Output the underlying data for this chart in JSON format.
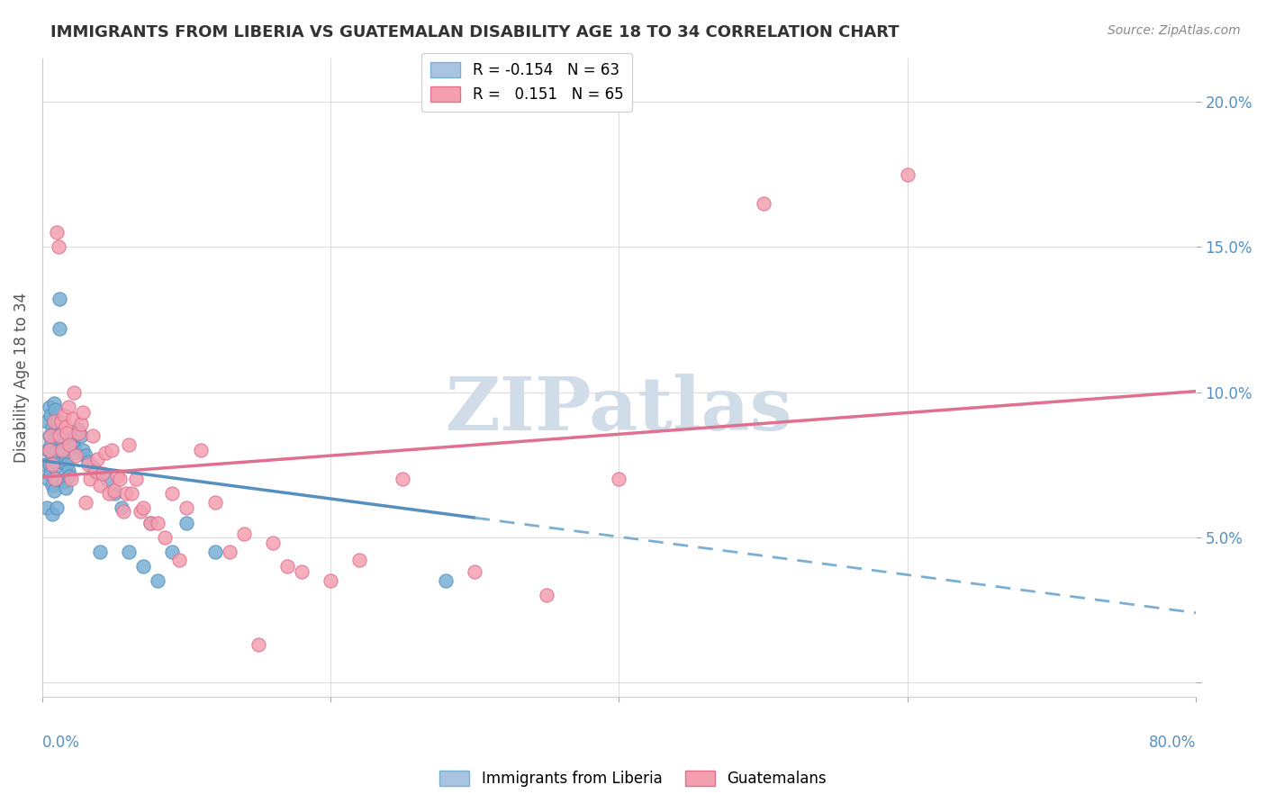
{
  "title": "IMMIGRANTS FROM LIBERIA VS GUATEMALAN DISABILITY AGE 18 TO 34 CORRELATION CHART",
  "source": "Source: ZipAtlas.com",
  "ylabel": "Disability Age 18 to 34",
  "yticks": [
    0.0,
    0.05,
    0.1,
    0.15,
    0.2
  ],
  "ytick_labels": [
    "",
    "5.0%",
    "10.0%",
    "15.0%",
    "20.0%"
  ],
  "xlim": [
    0.0,
    0.8
  ],
  "ylim": [
    -0.005,
    0.215
  ],
  "watermark": "ZIPatlas",
  "watermark_color": "#d0dce8",
  "series_blue": {
    "color": "#7aafd4",
    "edge_color": "#5590c0",
    "R": -0.154,
    "N": 63,
    "x": [
      0.002,
      0.003,
      0.003,
      0.004,
      0.004,
      0.005,
      0.005,
      0.005,
      0.006,
      0.006,
      0.006,
      0.007,
      0.007,
      0.007,
      0.007,
      0.008,
      0.008,
      0.008,
      0.008,
      0.009,
      0.009,
      0.009,
      0.01,
      0.01,
      0.01,
      0.01,
      0.011,
      0.011,
      0.012,
      0.012,
      0.013,
      0.013,
      0.014,
      0.015,
      0.015,
      0.016,
      0.016,
      0.017,
      0.018,
      0.019,
      0.02,
      0.021,
      0.022,
      0.023,
      0.025,
      0.027,
      0.028,
      0.03,
      0.032,
      0.035,
      0.038,
      0.04,
      0.045,
      0.05,
      0.055,
      0.06,
      0.07,
      0.075,
      0.08,
      0.09,
      0.1,
      0.12,
      0.28
    ],
    "y": [
      0.075,
      0.09,
      0.06,
      0.08,
      0.07,
      0.095,
      0.085,
      0.075,
      0.092,
      0.082,
      0.072,
      0.088,
      0.078,
      0.068,
      0.058,
      0.096,
      0.086,
      0.076,
      0.066,
      0.094,
      0.084,
      0.074,
      0.09,
      0.08,
      0.07,
      0.06,
      0.088,
      0.078,
      0.132,
      0.122,
      0.086,
      0.076,
      0.083,
      0.079,
      0.069,
      0.077,
      0.067,
      0.075,
      0.073,
      0.071,
      0.085,
      0.083,
      0.081,
      0.079,
      0.087,
      0.085,
      0.08,
      0.078,
      0.076,
      0.074,
      0.072,
      0.045,
      0.07,
      0.065,
      0.06,
      0.045,
      0.04,
      0.055,
      0.035,
      0.045,
      0.055,
      0.045,
      0.035
    ]
  },
  "series_pink": {
    "color": "#f4a0b0",
    "edge_color": "#e07090",
    "R": 0.151,
    "N": 65,
    "x": [
      0.005,
      0.006,
      0.007,
      0.008,
      0.009,
      0.01,
      0.011,
      0.012,
      0.013,
      0.014,
      0.015,
      0.016,
      0.017,
      0.018,
      0.019,
      0.02,
      0.021,
      0.022,
      0.023,
      0.025,
      0.027,
      0.028,
      0.03,
      0.032,
      0.033,
      0.035,
      0.037,
      0.038,
      0.04,
      0.042,
      0.044,
      0.046,
      0.048,
      0.05,
      0.052,
      0.054,
      0.056,
      0.058,
      0.06,
      0.062,
      0.065,
      0.068,
      0.07,
      0.075,
      0.08,
      0.085,
      0.09,
      0.095,
      0.1,
      0.11,
      0.12,
      0.13,
      0.14,
      0.15,
      0.16,
      0.17,
      0.18,
      0.2,
      0.22,
      0.25,
      0.3,
      0.35,
      0.4,
      0.5,
      0.6
    ],
    "y": [
      0.08,
      0.085,
      0.075,
      0.09,
      0.07,
      0.155,
      0.15,
      0.085,
      0.09,
      0.08,
      0.092,
      0.088,
      0.086,
      0.095,
      0.082,
      0.07,
      0.091,
      0.1,
      0.078,
      0.086,
      0.089,
      0.093,
      0.062,
      0.075,
      0.07,
      0.085,
      0.073,
      0.077,
      0.068,
      0.072,
      0.079,
      0.065,
      0.08,
      0.066,
      0.071,
      0.07,
      0.059,
      0.065,
      0.082,
      0.065,
      0.07,
      0.059,
      0.06,
      0.055,
      0.055,
      0.05,
      0.065,
      0.042,
      0.06,
      0.08,
      0.062,
      0.045,
      0.051,
      0.013,
      0.048,
      0.04,
      0.038,
      0.035,
      0.042,
      0.07,
      0.038,
      0.03,
      0.07,
      0.165,
      0.175
    ]
  },
  "background_color": "#ffffff",
  "grid_color": "#dddddd"
}
